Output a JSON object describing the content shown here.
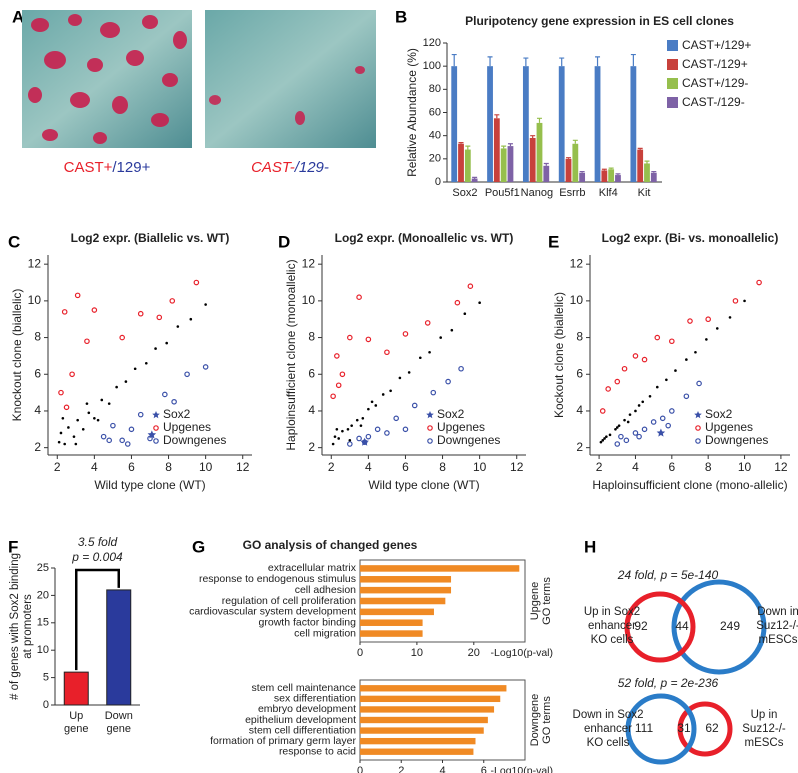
{
  "panel_letters": [
    "A",
    "B",
    "C",
    "D",
    "E",
    "F",
    "G",
    "H"
  ],
  "panel_a": {
    "labels": [
      [
        "CAST+",
        "/129+"
      ],
      [
        "CAST-",
        "/129-"
      ]
    ]
  },
  "chart_data": [
    {
      "type": "bar",
      "title": "Pluripotency gene expression in ES cell clones",
      "y_label": "Relative Abundance (%)",
      "categories": [
        "Sox2",
        "Pou5f1",
        "Nanog",
        "Esrrb",
        "Klf4",
        "Kit"
      ],
      "series": [
        {
          "name": "CAST+/129+",
          "color": "#4a7cc4",
          "values": [
            100,
            100,
            100,
            100,
            100,
            100
          ],
          "errors": [
            10,
            8,
            7,
            7,
            8,
            10
          ]
        },
        {
          "name": "CAST-/129+",
          "color": "#c8413c",
          "values": [
            33,
            55,
            38,
            20,
            10,
            28
          ],
          "errors": [
            1,
            3,
            2,
            1,
            1,
            1
          ]
        },
        {
          "name": "CAST+/129-",
          "color": "#96bf4d",
          "values": [
            28,
            29,
            51,
            33,
            11,
            16
          ],
          "errors": [
            3,
            2,
            4,
            3,
            1,
            2
          ]
        },
        {
          "name": "CAST-/129-",
          "color": "#7e62a6",
          "values": [
            3,
            31,
            14,
            8,
            6,
            8
          ],
          "errors": [
            1,
            2,
            2,
            1,
            1,
            1
          ]
        }
      ],
      "ylim": [
        0,
        120
      ],
      "yticks": [
        0,
        20,
        40,
        60,
        80,
        100,
        120
      ],
      "legend": "right"
    },
    {
      "type": "scatter",
      "title": "Log2 expr. (Biallelic vs. WT)",
      "x_label": "Wild type clone (WT)",
      "y_label": "Knockout clone (biallelic)",
      "xlim": [
        1.5,
        12.5
      ],
      "ylim": [
        1.6,
        12.5
      ],
      "xticks": [
        2,
        4,
        6,
        8,
        10,
        12
      ],
      "yticks": [
        2,
        4,
        6,
        8,
        10,
        12
      ],
      "series": [
        {
          "color": "#000000",
          "marker": "dot",
          "x": [
            2.1,
            2.2,
            2.4,
            2.6,
            2.9,
            3.1,
            3.4,
            3.7,
            4.0,
            4.4,
            4.8,
            5.2,
            5.7,
            6.2,
            6.8,
            7.3,
            7.9,
            8.5,
            9.2,
            10.0,
            2.3,
            3.0,
            3.6,
            4.2
          ],
          "y": [
            2.3,
            2.8,
            2.2,
            3.1,
            2.6,
            3.5,
            3.0,
            3.9,
            3.6,
            4.6,
            4.4,
            5.3,
            5.6,
            6.3,
            6.6,
            7.4,
            7.7,
            8.6,
            9.0,
            9.8,
            3.6,
            2.2,
            4.4,
            3.5
          ]
        },
        {
          "name": "Sox2",
          "color": "#3a50a8",
          "marker": "star",
          "x": [
            7.1
          ],
          "y": [
            2.7
          ]
        },
        {
          "name": "Upgenes",
          "color": "#e8202a",
          "marker": "circle",
          "x": [
            2.2,
            2.4,
            2.8,
            3.1,
            3.6,
            2.5,
            4.0,
            5.5,
            6.5,
            7.5,
            8.2,
            9.5
          ],
          "y": [
            5.0,
            9.4,
            6.0,
            10.3,
            7.8,
            4.2,
            9.5,
            8.0,
            9.3,
            9.1,
            10.0,
            11.0
          ]
        },
        {
          "name": "Downgenes",
          "color": "#3a50a8",
          "marker": "circle",
          "x": [
            4.5,
            5.0,
            5.5,
            6.0,
            6.5,
            7.0,
            7.8,
            8.3,
            9.0,
            10.0,
            5.8,
            4.8
          ],
          "y": [
            2.6,
            3.2,
            2.4,
            3.0,
            3.8,
            2.5,
            4.9,
            4.5,
            6.0,
            6.4,
            2.2,
            2.4
          ]
        }
      ]
    },
    {
      "type": "scatter",
      "title": "Log2 expr. (Monoallelic vs. WT)",
      "x_label": "Wild type clone (WT)",
      "y_label": "Haploinsufficient clone (monoallelic)",
      "xlim": [
        1.5,
        12.5
      ],
      "ylim": [
        1.6,
        12.5
      ],
      "xticks": [
        2,
        4,
        6,
        8,
        10,
        12
      ],
      "yticks": [
        2,
        4,
        6,
        8,
        10,
        12
      ],
      "series": [
        {
          "color": "#000000",
          "marker": "dot",
          "x": [
            2.1,
            2.2,
            2.4,
            2.6,
            2.9,
            3.1,
            3.4,
            3.7,
            4.0,
            4.4,
            4.8,
            5.2,
            5.7,
            6.2,
            6.8,
            7.3,
            7.9,
            8.5,
            9.2,
            10.0,
            2.3,
            3.0,
            3.6,
            4.2
          ],
          "y": [
            2.2,
            2.6,
            2.5,
            2.9,
            3.0,
            3.2,
            3.5,
            3.6,
            4.1,
            4.3,
            4.9,
            5.1,
            5.8,
            6.1,
            6.9,
            7.2,
            8.0,
            8.4,
            9.3,
            9.9,
            3.0,
            2.4,
            3.2,
            4.5
          ]
        },
        {
          "name": "Sox2",
          "color": "#3a50a8",
          "marker": "star",
          "x": [
            3.8
          ],
          "y": [
            2.3
          ]
        },
        {
          "name": "Upgenes",
          "color": "#e8202a",
          "marker": "circle",
          "x": [
            2.1,
            2.3,
            2.6,
            3.0,
            3.5,
            2.4,
            4.0,
            5.0,
            6.0,
            7.2,
            8.8,
            9.5
          ],
          "y": [
            4.8,
            7.0,
            6.0,
            8.0,
            10.2,
            5.4,
            7.9,
            7.2,
            8.2,
            8.8,
            9.9,
            10.8
          ]
        },
        {
          "name": "Downgenes",
          "color": "#3a50a8",
          "marker": "circle",
          "x": [
            3.0,
            3.5,
            4.0,
            4.5,
            5.5,
            6.5,
            7.5,
            8.3,
            9.0,
            6.0,
            3.8,
            5.0
          ],
          "y": [
            2.2,
            2.5,
            2.6,
            3.0,
            3.6,
            4.3,
            5.0,
            5.6,
            6.3,
            3.0,
            2.3,
            2.8
          ]
        }
      ]
    },
    {
      "type": "scatter",
      "title": "Log2 expr. (Bi- vs. monoallelic)",
      "x_label": "Haploinsufficient clone (mono-allelic)",
      "y_label": "Kockout clone (biallelic)",
      "xlim": [
        1.5,
        12.5
      ],
      "ylim": [
        1.6,
        12.5
      ],
      "xticks": [
        2,
        4,
        6,
        8,
        10,
        12
      ],
      "yticks": [
        2,
        4,
        6,
        8,
        10,
        12
      ],
      "series": [
        {
          "color": "#000000",
          "marker": "dot",
          "x": [
            2.1,
            2.2,
            2.4,
            2.6,
            2.9,
            3.1,
            3.4,
            3.7,
            4.0,
            4.4,
            4.8,
            5.2,
            5.7,
            6.2,
            6.8,
            7.3,
            7.9,
            8.5,
            9.2,
            10.0,
            2.3,
            3.0,
            3.6,
            4.2
          ],
          "y": [
            2.3,
            2.4,
            2.6,
            2.7,
            3.0,
            3.2,
            3.5,
            3.8,
            4.0,
            4.5,
            4.8,
            5.3,
            5.7,
            6.2,
            6.8,
            7.2,
            7.9,
            8.5,
            9.1,
            10.0,
            2.5,
            3.1,
            3.4,
            4.3
          ]
        },
        {
          "name": "Sox2",
          "color": "#3a50a8",
          "marker": "star",
          "x": [
            5.4
          ],
          "y": [
            2.8
          ]
        },
        {
          "name": "Upgenes",
          "color": "#e8202a",
          "marker": "circle",
          "x": [
            2.2,
            2.5,
            3.0,
            3.4,
            4.0,
            4.5,
            5.2,
            6.0,
            7.0,
            8.0,
            9.5,
            10.8
          ],
          "y": [
            4.0,
            5.2,
            5.6,
            6.3,
            7.0,
            6.8,
            8.0,
            7.8,
            8.9,
            9.0,
            10.0,
            11.0
          ]
        },
        {
          "name": "Downgenes",
          "color": "#3a50a8",
          "marker": "circle",
          "x": [
            3.0,
            3.5,
            4.0,
            4.5,
            5.0,
            5.5,
            6.0,
            6.8,
            7.5,
            4.2,
            3.2,
            5.8
          ],
          "y": [
            2.2,
            2.4,
            2.8,
            3.0,
            3.4,
            3.6,
            4.0,
            4.8,
            5.5,
            2.6,
            2.6,
            3.2
          ]
        }
      ]
    },
    {
      "type": "bar",
      "y_label_lines": [
        "# of genes with Sox2 binding",
        "at promoters"
      ],
      "categories": [
        "Up gene",
        "Down gene"
      ],
      "values": [
        6,
        21
      ],
      "colors": [
        "#e8202a",
        "#2a3a9c"
      ],
      "ylim": [
        0,
        25
      ],
      "yticks": [
        0,
        5,
        10,
        15,
        20,
        25
      ],
      "annotations": [
        "3.5 fold",
        "p = 0.004"
      ]
    },
    {
      "type": "barh",
      "title": "GO analysis of changed genes",
      "categories": [
        "extracellular matrix",
        "response to endogenous stimulus",
        "cell adhesion",
        "regulation of cell proliferation",
        "cardiovascular system development",
        "growth factor binding",
        "cell migration"
      ],
      "values": [
        28,
        16,
        16,
        15,
        13,
        11,
        11
      ],
      "color": "#f08a24",
      "label_color": "#e8202a",
      "xlim": [
        0,
        29
      ],
      "xticks": [
        0,
        10,
        20
      ],
      "x_label": "-Log10(p-val)",
      "side_labels": [
        "Upgene",
        "GO terms"
      ]
    },
    {
      "type": "barh",
      "categories": [
        "stem cell maintenance",
        "sex differentiation",
        "embryo development",
        "epithelium development",
        "stem cell differentiation",
        "formation of primary germ layer",
        "response to acid"
      ],
      "values": [
        7.1,
        6.8,
        6.5,
        6.2,
        6.0,
        5.6,
        5.5
      ],
      "color": "#f08a24",
      "label_color": "#2a3a9c",
      "xlim": [
        0,
        8
      ],
      "xticks": [
        0,
        2,
        4,
        6
      ],
      "x_label": "-Log10(p-val)",
      "side_labels": [
        "Downgene",
        "GO terms"
      ]
    }
  ],
  "panel_h": {
    "venns": [
      {
        "title": "24 fold, p = 5e-140",
        "left_label": [
          "Up in Sox2",
          "enhancer",
          "KO cells"
        ],
        "right_label": [
          "Down in",
          "Suz12-/-",
          "mESCs"
        ],
        "counts": [
          92,
          44,
          249
        ]
      },
      {
        "title": "52 fold, p = 2e-236",
        "left_label": [
          "Down in Sox2",
          "enhancer",
          "KO cells"
        ],
        "right_label": [
          "Up in",
          "Suz12-/-",
          "mESCs"
        ],
        "counts": [
          111,
          31,
          62
        ]
      }
    ]
  }
}
